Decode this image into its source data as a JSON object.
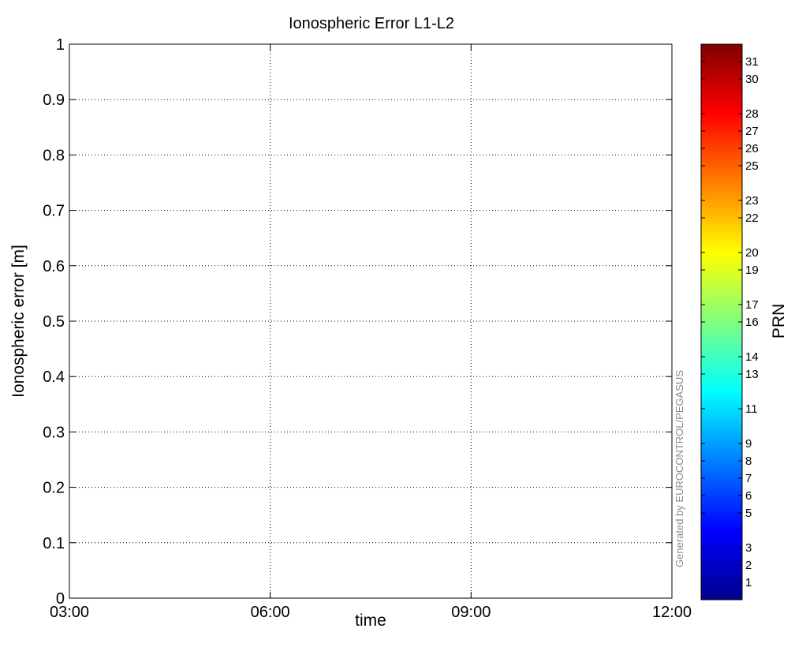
{
  "chart_data": {
    "type": "scatter",
    "title": "Ionospheric Error L1-L2",
    "xlabel": "time",
    "ylabel": "Ionospheric error [m]",
    "x_tick_labels": [
      "03:00",
      "06:00",
      "09:00",
      "12:00"
    ],
    "xlim": [
      "03:00",
      "12:00"
    ],
    "ylim": [
      0,
      1
    ],
    "y_ticks": [
      0,
      0.1,
      0.2,
      0.3,
      0.4,
      0.5,
      0.6,
      0.7,
      0.8,
      0.9,
      1
    ],
    "y_tick_labels": [
      "0",
      "0.1",
      "0.2",
      "0.3",
      "0.4",
      "0.5",
      "0.6",
      "0.7",
      "0.8",
      "0.9",
      "1"
    ],
    "grid": true,
    "series": [],
    "colorbar": {
      "label": "PRN",
      "colormap": "jet",
      "range": [
        0,
        32
      ],
      "ticks": [
        1,
        2,
        3,
        5,
        6,
        7,
        8,
        9,
        11,
        13,
        14,
        16,
        17,
        19,
        20,
        22,
        23,
        25,
        26,
        27,
        28,
        30,
        31
      ],
      "tick_labels": [
        "1",
        "2",
        "3",
        "5",
        "6",
        "7",
        "8",
        "9",
        "11",
        "13",
        "14",
        "16",
        "17",
        "19",
        "20",
        "22",
        "23",
        "25",
        "26",
        "27",
        "28",
        "30",
        "31"
      ]
    },
    "watermark": "Generated by EUROCONTROL/PEGASUS"
  }
}
